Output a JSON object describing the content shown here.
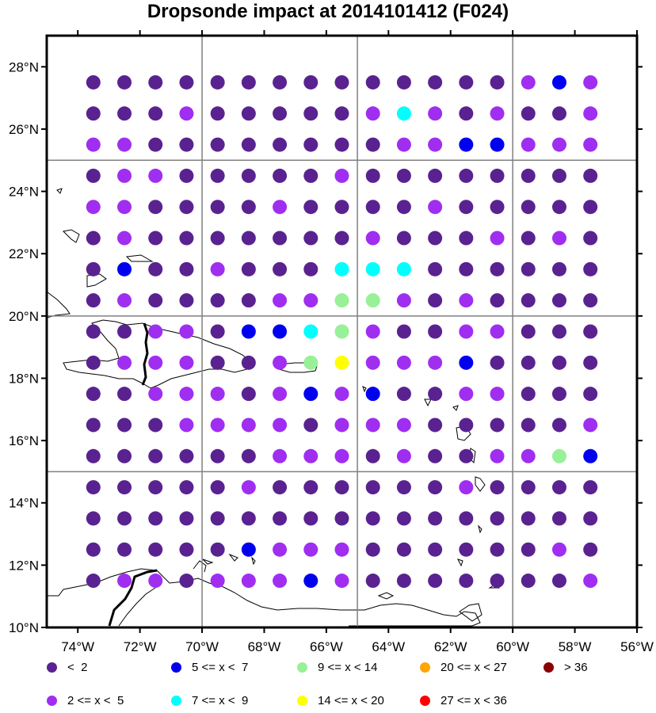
{
  "title": "Dropsonde impact at 2014101412 (F024)",
  "axes": {
    "lon_labels": [
      "74°W",
      "72°W",
      "70°W",
      "68°W",
      "66°W",
      "64°W",
      "62°W",
      "60°W",
      "58°W",
      "56°W"
    ],
    "lat_labels": [
      "28°N",
      "26°N",
      "24°N",
      "22°N",
      "20°N",
      "18°N",
      "16°N",
      "14°N",
      "12°N",
      "10°N"
    ],
    "lon_range": [
      -75,
      -56
    ],
    "lat_range": [
      10,
      29
    ],
    "grid_lons": [
      -70,
      -65,
      -60
    ],
    "grid_lats": [
      15,
      20,
      25
    ]
  },
  "legend": [
    {
      "label": "<  2",
      "color": "#5a2290"
    },
    {
      "label": "2 <= x <  5",
      "color": "#a02ef0"
    },
    {
      "label": "5 <= x <  7",
      "color": "#0000f0"
    },
    {
      "label": "7 <= x <  9",
      "color": "#00ffff"
    },
    {
      "label": "9 <= x < 14",
      "color": "#98f098"
    },
    {
      "label": "14 <= x < 20",
      "color": "#ffff00"
    },
    {
      "label": "20 <= x < 27",
      "color": "#ffa500"
    },
    {
      "label": "27 <= x < 36",
      "color": "#ff0000"
    },
    {
      "label": "> 36",
      "color": "#8b0000"
    }
  ],
  "chart_data": {
    "type": "scatter",
    "title": "Dropsonde impact at 2014101412 (F024)",
    "xlabel": "",
    "ylabel": "",
    "xlim": [
      -75,
      -56
    ],
    "ylim": [
      10,
      29
    ],
    "columns_lon": [
      -73.5,
      -72.5,
      -71.5,
      -70.5,
      -69.5,
      -68.5,
      -67.5,
      -66.5,
      -65.5,
      -64.5,
      -63.5,
      -62.5,
      -61.5,
      -60.5,
      -59.5,
      -58.5,
      -57.5
    ],
    "rows_lat": [
      27.5,
      26.5,
      25.5,
      24.5,
      23.5,
      22.5,
      21.5,
      20.5,
      19.5,
      18.5,
      17.5,
      16.5,
      15.5,
      14.5,
      13.5,
      12.5,
      11.5
    ],
    "category_key": [
      "<  2",
      "2 <= x <  5",
      "5 <= x <  7",
      "7 <= x <  9",
      "9 <= x < 14",
      "14 <= x < 20",
      "20 <= x < 27",
      "27 <= x < 36",
      "> 36"
    ],
    "grid_categories": [
      [
        0,
        0,
        0,
        0,
        0,
        0,
        0,
        0,
        0,
        0,
        0,
        0,
        0,
        0,
        1,
        2,
        1
      ],
      [
        0,
        0,
        0,
        1,
        0,
        0,
        0,
        0,
        0,
        1,
        3,
        1,
        0,
        1,
        0,
        0,
        1
      ],
      [
        1,
        1,
        0,
        0,
        0,
        0,
        0,
        0,
        0,
        0,
        1,
        1,
        2,
        2,
        1,
        1,
        1
      ],
      [
        0,
        1,
        1,
        0,
        0,
        0,
        0,
        0,
        1,
        0,
        0,
        0,
        0,
        0,
        0,
        0,
        0
      ],
      [
        1,
        1,
        0,
        0,
        0,
        0,
        1,
        0,
        0,
        0,
        0,
        1,
        0,
        0,
        0,
        0,
        0
      ],
      [
        0,
        1,
        0,
        0,
        0,
        0,
        0,
        0,
        0,
        1,
        0,
        0,
        0,
        1,
        0,
        1,
        0
      ],
      [
        0,
        2,
        0,
        0,
        1,
        0,
        0,
        0,
        3,
        3,
        3,
        0,
        0,
        0,
        0,
        0,
        0
      ],
      [
        0,
        1,
        0,
        0,
        0,
        0,
        1,
        1,
        4,
        4,
        1,
        0,
        1,
        0,
        0,
        0,
        0
      ],
      [
        0,
        0,
        1,
        1,
        0,
        2,
        2,
        3,
        4,
        1,
        0,
        0,
        1,
        1,
        0,
        0,
        0
      ],
      [
        0,
        1,
        1,
        1,
        0,
        0,
        1,
        4,
        5,
        1,
        1,
        1,
        2,
        0,
        0,
        0,
        0
      ],
      [
        0,
        0,
        1,
        1,
        1,
        0,
        1,
        2,
        1,
        2,
        0,
        0,
        1,
        1,
        0,
        0,
        0
      ],
      [
        0,
        0,
        0,
        1,
        1,
        1,
        1,
        0,
        1,
        1,
        1,
        0,
        0,
        0,
        0,
        0,
        1
      ],
      [
        0,
        0,
        0,
        0,
        0,
        0,
        1,
        1,
        1,
        0,
        1,
        0,
        0,
        1,
        1,
        4,
        2
      ],
      [
        0,
        0,
        0,
        0,
        0,
        1,
        0,
        0,
        0,
        0,
        0,
        0,
        1,
        0,
        0,
        0,
        0
      ],
      [
        0,
        0,
        0,
        0,
        0,
        0,
        0,
        0,
        0,
        0,
        0,
        0,
        0,
        0,
        0,
        0,
        0
      ],
      [
        0,
        0,
        0,
        0,
        0,
        2,
        1,
        1,
        1,
        0,
        0,
        0,
        0,
        0,
        0,
        1,
        0
      ],
      [
        0,
        1,
        1,
        0,
        1,
        1,
        1,
        2,
        1,
        0,
        0,
        0,
        0,
        0,
        0,
        0,
        1
      ]
    ]
  }
}
